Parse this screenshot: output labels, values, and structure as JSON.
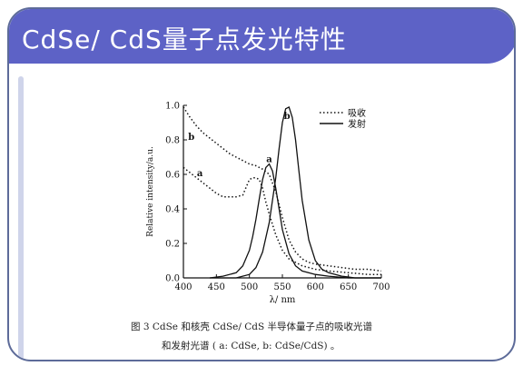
{
  "slide": {
    "title": "CdSe/ CdS量子点发光特性"
  },
  "caption": {
    "line1": "图 3   CdSe 和核壳 CdSe/ CdS 半导体量子点的吸收光谱",
    "line2": "和发射光谱 ( a: CdSe,  b:  CdSe/CdS) 。"
  },
  "chart_data": {
    "type": "line",
    "xlabel": "λ/ nm",
    "ylabel": "Relative intensity/a.u.",
    "xlim": [
      400,
      700
    ],
    "ylim": [
      0,
      1.0
    ],
    "xticks": [
      400,
      450,
      500,
      550,
      600,
      650,
      700
    ],
    "yticks": [
      0.0,
      0.2,
      0.4,
      0.6,
      0.8,
      1.0
    ],
    "legend": {
      "position": "top-right",
      "entries": [
        {
          "label": "吸收",
          "style": "dotted"
        },
        {
          "label": "发射",
          "style": "solid"
        }
      ]
    },
    "series": [
      {
        "style": "dotted",
        "label": "b",
        "x": [
          400,
          410,
          420,
          430,
          440,
          450,
          460,
          470,
          480,
          490,
          500,
          510,
          520,
          530,
          540,
          550,
          560,
          570,
          580,
          590,
          600,
          620,
          640,
          660,
          680,
          700
        ],
        "y": [
          0.99,
          0.93,
          0.88,
          0.84,
          0.81,
          0.78,
          0.75,
          0.72,
          0.7,
          0.68,
          0.66,
          0.65,
          0.63,
          0.6,
          0.5,
          0.35,
          0.22,
          0.15,
          0.11,
          0.09,
          0.08,
          0.07,
          0.06,
          0.05,
          0.05,
          0.04
        ]
      },
      {
        "style": "dotted",
        "label": "a",
        "x": [
          400,
          410,
          420,
          430,
          440,
          450,
          460,
          470,
          480,
          490,
          500,
          505,
          510,
          515,
          520,
          525,
          530,
          540,
          550,
          560,
          580,
          600,
          620,
          650,
          680,
          700
        ],
        "y": [
          0.64,
          0.61,
          0.58,
          0.55,
          0.52,
          0.49,
          0.47,
          0.47,
          0.47,
          0.48,
          0.57,
          0.58,
          0.58,
          0.57,
          0.52,
          0.44,
          0.37,
          0.25,
          0.16,
          0.11,
          0.07,
          0.05,
          0.04,
          0.03,
          0.02,
          0.02
        ]
      },
      {
        "style": "solid",
        "label": "a",
        "x": [
          440,
          460,
          480,
          490,
          500,
          505,
          510,
          515,
          520,
          525,
          530,
          535,
          540,
          545,
          550,
          560,
          570,
          580,
          600,
          620,
          650,
          700
        ],
        "y": [
          0.0,
          0.01,
          0.03,
          0.07,
          0.16,
          0.24,
          0.34,
          0.46,
          0.57,
          0.64,
          0.66,
          0.62,
          0.52,
          0.4,
          0.28,
          0.14,
          0.07,
          0.04,
          0.02,
          0.01,
          0.0,
          0.0
        ]
      },
      {
        "style": "solid",
        "label": "b",
        "x": [
          440,
          480,
          500,
          510,
          520,
          530,
          540,
          545,
          550,
          555,
          560,
          565,
          570,
          575,
          580,
          590,
          600,
          610,
          620,
          640,
          660,
          700
        ],
        "y": [
          0.0,
          0.0,
          0.02,
          0.06,
          0.15,
          0.32,
          0.58,
          0.75,
          0.9,
          0.98,
          0.99,
          0.93,
          0.8,
          0.62,
          0.45,
          0.22,
          0.1,
          0.05,
          0.03,
          0.01,
          0.0,
          0.0
        ]
      }
    ]
  }
}
